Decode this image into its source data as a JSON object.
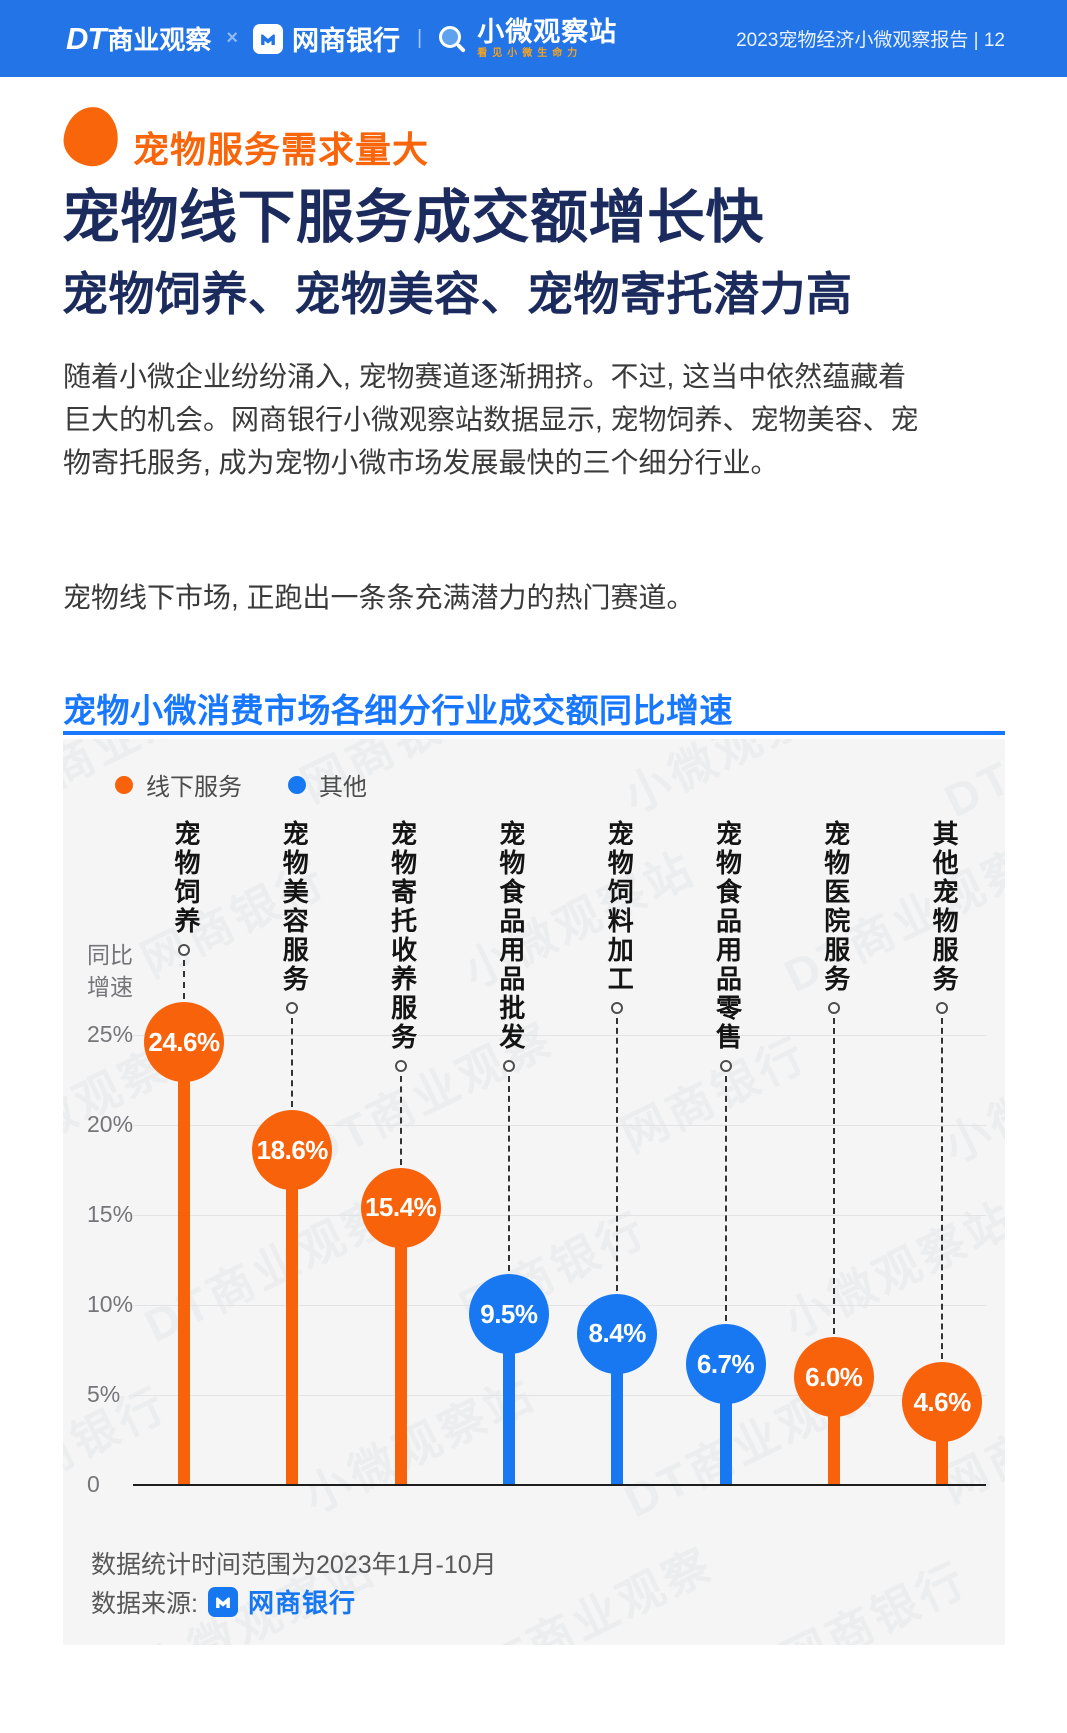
{
  "header": {
    "brand_dt_mark": "DT",
    "brand_dt_text": "商业观察",
    "sep": "×",
    "brand_bank": "网商银行",
    "divider": "|",
    "brand_station": "小微观察站",
    "station_tagline": "看见小微生命力",
    "right_text": "2023宠物经济小微观察报告 | 12"
  },
  "section": {
    "kicker": "宠物服务需求量大",
    "title": "宠物线下服务成交额增长快",
    "subtitle": "宠物饲养、宠物美容、宠物寄托潜力高",
    "paragraph1": "随着小微企业纷纷涌入, 宠物赛道逐渐拥挤。不过, 这当中依然蕴藏着巨大的机会。网商银行小微观察站数据显示, 宠物饲养、宠物美容、宠物寄托服务, 成为宠物小微市场发展最快的三个细分行业。",
    "paragraph2": "宠物线下市场, 正跑出一条条充满潜力的热门赛道。"
  },
  "chart": {
    "title": "宠物小微消费市场各细分行业成交额同比增速",
    "footnote_time": "数据统计时间范围为2023年1月-10月",
    "footnote_source_label": "数据来源:",
    "footnote_source_name": "网商银行"
  },
  "chart_data": {
    "type": "lollipop",
    "title": "宠物小微消费市场各细分行业成交额同比增速",
    "ylabel": "同比增速",
    "ylim": [
      0,
      25
    ],
    "grid": true,
    "legend_position": "top-left",
    "legend": [
      {
        "name": "线下服务",
        "color": "#F7620A"
      },
      {
        "name": "其他",
        "color": "#1778F2"
      }
    ],
    "categories": [
      "宠物饲养",
      "宠物美容服务",
      "宠物寄托收养服务",
      "宠物食品用品批发",
      "宠物饲料加工",
      "宠物食品用品零售",
      "宠物医院服务",
      "其他宠物服务"
    ],
    "values": [
      24.6,
      18.6,
      15.4,
      9.5,
      8.4,
      6.7,
      6.0,
      4.6
    ],
    "value_labels": [
      "24.6%",
      "18.6%",
      "15.4%",
      "9.5%",
      "8.4%",
      "6.7%",
      "6.0%",
      "4.6%"
    ],
    "groups": [
      "线下服务",
      "线下服务",
      "线下服务",
      "其他",
      "其他",
      "其他",
      "线下服务",
      "线下服务"
    ],
    "yticks": [
      {
        "label": "25%",
        "value": 25
      },
      {
        "label": "20%",
        "value": 20
      },
      {
        "label": "15%",
        "value": 15
      },
      {
        "label": "10%",
        "value": 10
      },
      {
        "label": "5%",
        "value": 5
      },
      {
        "label": "0",
        "value": 0
      }
    ]
  },
  "watermarks": [
    "DT商业观察",
    "网商银行",
    "小微观察站"
  ],
  "colors": {
    "header_blue": "#2374E6",
    "accent_orange": "#F7620A",
    "accent_blue": "#1778F2",
    "title_navy": "#1C2B5E",
    "chart_title_blue": "#1777FF",
    "chart_bg": "#F5F5F6"
  }
}
